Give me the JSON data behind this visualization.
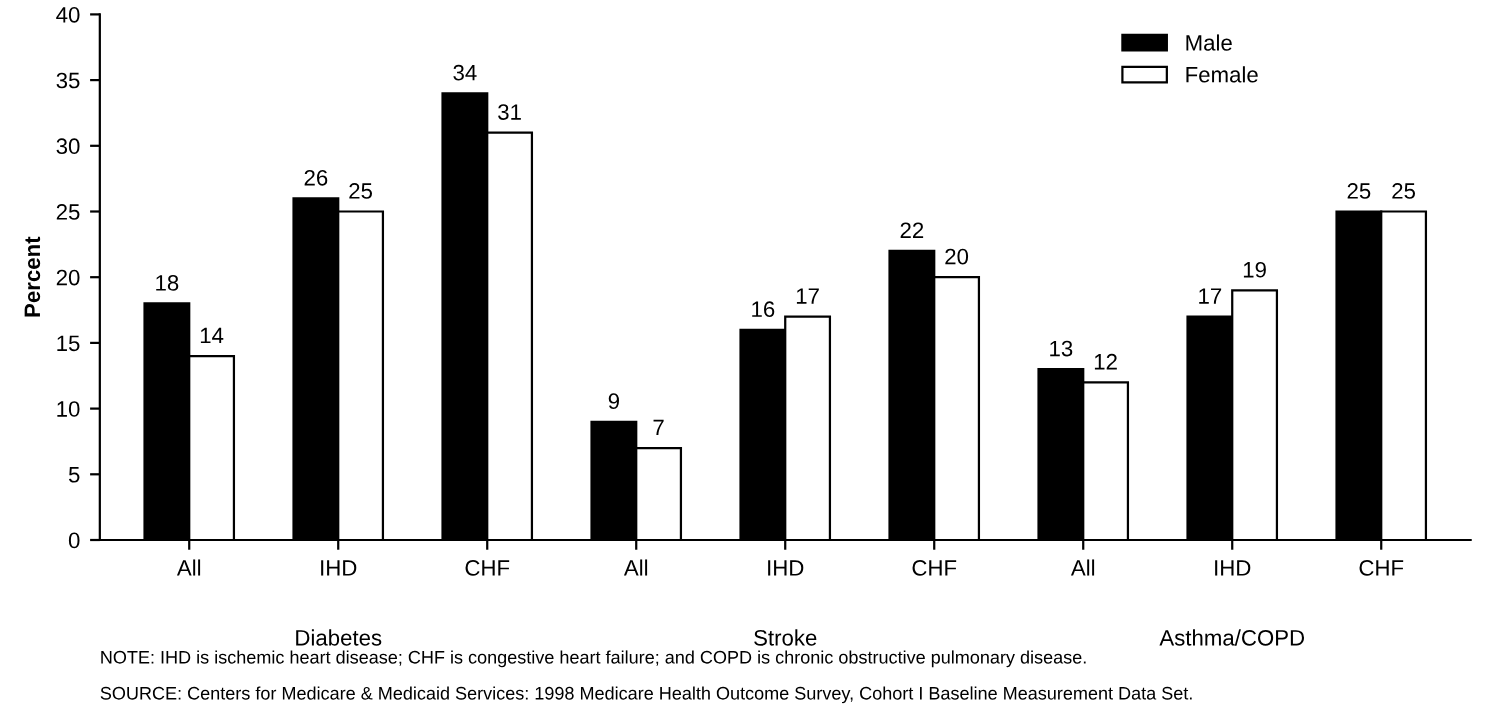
{
  "chart_data": {
    "type": "bar",
    "ylabel": "Percent",
    "categories": [
      "All",
      "IHD",
      "CHF",
      "All",
      "IHD",
      "CHF",
      "All",
      "IHD",
      "CHF"
    ],
    "series": [
      {
        "name": "Male",
        "color": "#000000",
        "values": [
          18,
          26,
          34,
          9,
          16,
          22,
          13,
          17,
          25
        ]
      },
      {
        "name": "Female",
        "color": "#ffffff",
        "values": [
          14,
          25,
          31,
          7,
          17,
          20,
          12,
          19,
          25
        ]
      }
    ],
    "ylim": [
      0,
      40
    ],
    "yticks": [
      0,
      5,
      10,
      15,
      20,
      25,
      30,
      35,
      40
    ],
    "grid": false,
    "legend": "top right",
    "data_labels": true,
    "annotations": [
      "Diabetes",
      "Stroke",
      "Asthma/COPD",
      "NOTE: IHD is ischemic heart disease; CHF is congestive heart failure; and COPD is chronic obstructive pulmonary disease.",
      "SOURCE: Centers for Medicare & Medicaid Services: 1998 Medicare Health Outcome Survey, Cohort I Baseline Measurement Data Set."
    ]
  }
}
